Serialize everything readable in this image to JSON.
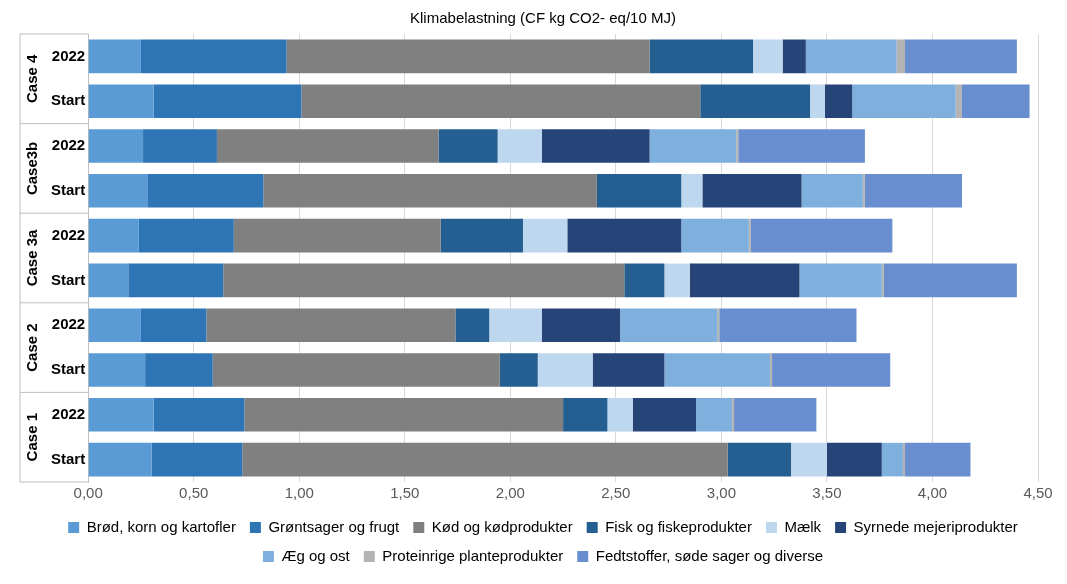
{
  "chart_data": {
    "type": "bar",
    "orientation": "horizontal",
    "stacked": true,
    "title": "Klimabelastning (CF kg CO2- eq/10 MJ)",
    "categories": [
      "2022",
      "Start",
      "2022",
      "Start",
      "2022",
      "Start",
      "2022",
      "Start",
      "2022",
      "Start"
    ],
    "annotations": [
      "Case 4",
      "Case3b",
      "Case 3a",
      "Case 2",
      "Case 1"
    ],
    "series": [
      {
        "name": "Brød, korn og kartofler",
        "color": "#5b9bd5",
        "values": [
          0.25,
          0.31,
          0.26,
          0.28,
          0.24,
          0.19,
          0.25,
          0.27,
          0.31,
          0.3
        ]
      },
      {
        "name": "Grøntsager og frugt",
        "color": "#2e75b6",
        "values": [
          0.69,
          0.7,
          0.35,
          0.55,
          0.45,
          0.45,
          0.31,
          0.32,
          0.43,
          0.43
        ]
      },
      {
        "name": "Kød og kødprodukter",
        "color": "#808080",
        "values": [
          1.72,
          1.89,
          1.05,
          1.58,
          0.98,
          1.9,
          1.18,
          1.36,
          1.51,
          2.3
        ]
      },
      {
        "name": "Fisk og fiskeprodukter",
        "color": "#255e91",
        "values": [
          0.49,
          0.52,
          0.28,
          0.4,
          0.39,
          0.19,
          0.16,
          0.18,
          0.21,
          0.3
        ]
      },
      {
        "name": "Mælk",
        "color": "#bdd7ee",
        "values": [
          0.14,
          0.07,
          0.21,
          0.1,
          0.21,
          0.12,
          0.25,
          0.26,
          0.12,
          0.17
        ]
      },
      {
        "name": "Syrnede mejeriprodukter",
        "color": "#264478",
        "values": [
          0.11,
          0.13,
          0.51,
          0.47,
          0.54,
          0.52,
          0.37,
          0.34,
          0.3,
          0.26
        ]
      },
      {
        "name": "Æg og ost",
        "color": "#7eafdd",
        "values": [
          0.43,
          0.49,
          0.41,
          0.29,
          0.32,
          0.39,
          0.46,
          0.5,
          0.17,
          0.1
        ]
      },
      {
        "name": "Proteinrige planteprodukter",
        "color": "#b4b4b4",
        "values": [
          0.04,
          0.03,
          0.01,
          0.01,
          0.01,
          0.01,
          0.01,
          0.01,
          0.01,
          0.01
        ]
      },
      {
        "name": "Fedtstoffer, søde sager og diverse",
        "color": "#698ed0",
        "values": [
          0.53,
          0.32,
          0.6,
          0.46,
          0.67,
          0.63,
          0.65,
          0.56,
          0.39,
          0.31
        ]
      }
    ],
    "xlim": [
      0,
      4.5
    ],
    "xticks": [
      {
        "value": 0,
        "label": "0,00"
      },
      {
        "value": 0.5,
        "label": "0,50"
      },
      {
        "value": 1,
        "label": "1,00"
      },
      {
        "value": 1.5,
        "label": "1,50"
      },
      {
        "value": 2,
        "label": "2,00"
      },
      {
        "value": 2.5,
        "label": "2,50"
      },
      {
        "value": 3,
        "label": "3,00"
      },
      {
        "value": 3.5,
        "label": "3,50"
      },
      {
        "value": 4,
        "label": "4,00"
      },
      {
        "value": 4.5,
        "label": "4,50"
      }
    ],
    "grid": "x",
    "legend": "bottom"
  }
}
